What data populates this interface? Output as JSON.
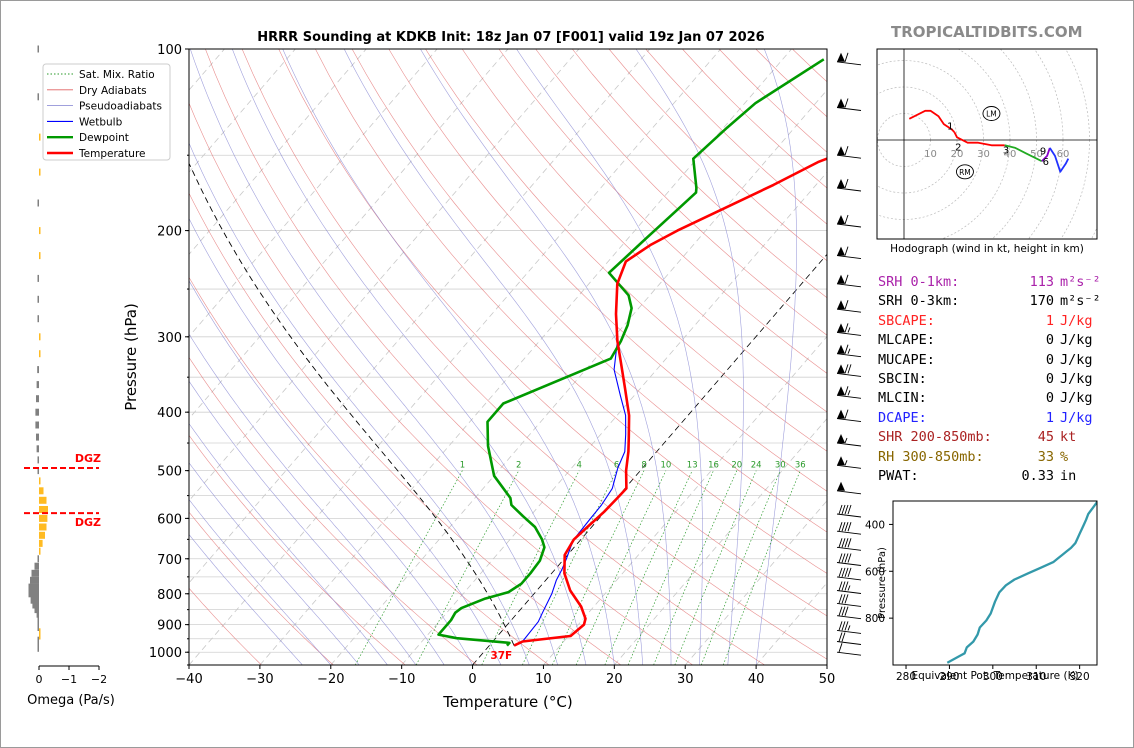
{
  "brand": "TROPICALTIDBITS.COM",
  "colors": {
    "temperature": "#ff0000",
    "dewpoint": "#009900",
    "wetbulb": "#0000ff",
    "dry_adiabat": "#e06060",
    "pseudoadiabat": "#8080d0",
    "mixing_ratio": "#2a9a2a",
    "theta_e": "#3399aa",
    "omega_up": "#ffbb22",
    "omega_down": "#808080",
    "dgz": "#ff0000",
    "srh1": "#aa22aa",
    "parcel_red": "#ff2222",
    "dcape": "#2222ff",
    "shear": "#aa2222",
    "rh": "#886600"
  },
  "chart_data": [
    {
      "type": "line",
      "title": "HRRR Sounding at KDKB Init: 18z Jan 07 [F001] valid 19z Jan 07 2026",
      "xlabel": "Temperature (°C)",
      "ylabel": "Pressure (hPa)",
      "xlim": [
        -40,
        50
      ],
      "ylim": [
        1050,
        100
      ],
      "y_scale": "log",
      "x_ticks": [
        "−40",
        "−30",
        "−20",
        "−10",
        "0",
        "10",
        "20",
        "30",
        "40",
        "50"
      ],
      "y_ticks": [
        "100",
        "200",
        "300",
        "400",
        "500",
        "600",
        "700",
        "800",
        "900",
        "1000"
      ],
      "grid": true,
      "legend_position": "top-left",
      "legend": [
        "Sat. Mix. Ratio",
        "Dry Adiabats",
        "Pseudoadiabats",
        "Wetbulb",
        "Dewpoint",
        "Temperature"
      ],
      "surface_label": "37F",
      "mixing_ratio_labels": [
        "1",
        "2",
        "4",
        "6",
        "8",
        "10",
        "13",
        "16",
        "20",
        "24",
        "30",
        "36"
      ],
      "series": [
        {
          "name": "Temperature",
          "points": [
            [
              3.5,
              975
            ],
            [
              4.2,
              960
            ],
            [
              10.3,
              940
            ],
            [
              10.8,
              900
            ],
            [
              10.3,
              880
            ],
            [
              8.2,
              840
            ],
            [
              4.7,
              790
            ],
            [
              1.8,
              740
            ],
            [
              -0.4,
              690
            ],
            [
              -1.0,
              650
            ],
            [
              -0.6,
              620
            ],
            [
              -0.1,
              585
            ],
            [
              0.1,
              555
            ],
            [
              0.2,
              535
            ],
            [
              -2.0,
              500
            ],
            [
              -4.0,
              465
            ],
            [
              -5.7,
              440
            ],
            [
              -8.3,
              405
            ],
            [
              -12.2,
              365
            ],
            [
              -16.0,
              330
            ],
            [
              -19.0,
              305
            ],
            [
              -22.5,
              275
            ],
            [
              -26.0,
              245
            ],
            [
              -27.5,
              225
            ],
            [
              -26.0,
              211
            ],
            [
              -24.0,
              200
            ],
            [
              -16.0,
              168
            ],
            [
              -12.5,
              154
            ],
            [
              -6.0,
              139
            ],
            [
              -2.7,
              128
            ],
            [
              -0.3,
              119
            ],
            [
              1.5,
              112
            ],
            [
              4.5,
              101
            ]
          ]
        },
        {
          "name": "Dewpoint",
          "points": [
            [
              2.5,
              975
            ],
            [
              2.5,
              965
            ],
            [
              -5.5,
              948
            ],
            [
              -8.5,
              935
            ],
            [
              -8.5,
              885
            ],
            [
              -8.8,
              860
            ],
            [
              -8.5,
              845
            ],
            [
              -6.3,
              815
            ],
            [
              -3.8,
              795
            ],
            [
              -3.0,
              770
            ],
            [
              -3.0,
              740
            ],
            [
              -3.2,
              705
            ],
            [
              -4.2,
              670
            ],
            [
              -5.5,
              650
            ],
            [
              -8.0,
              620
            ],
            [
              -11.0,
              595
            ],
            [
              -14.0,
              570
            ],
            [
              -15.0,
              555
            ],
            [
              -20.0,
              510
            ],
            [
              -24.5,
              455
            ],
            [
              -27.5,
              415
            ],
            [
              -27.5,
              387
            ],
            [
              -21.0,
              345
            ],
            [
              -17.8,
              326
            ],
            [
              -18.5,
              305
            ],
            [
              -19.5,
              287
            ],
            [
              -21.0,
              269
            ],
            [
              -23.0,
              256
            ],
            [
              -28.5,
              235
            ],
            [
              -27.5,
              207
            ],
            [
              -26.5,
              184
            ],
            [
              -26.0,
              173
            ],
            [
              -26.5,
              170
            ],
            [
              -30.5,
              152
            ],
            [
              -29.5,
              135
            ],
            [
              -28.5,
              123
            ],
            [
              -24.2,
              104
            ]
          ]
        },
        {
          "name": "Wetbulb",
          "points": [
            [
              3.5,
              975
            ],
            [
              4.2,
              965
            ],
            [
              4.0,
              890
            ],
            [
              3.5,
              860
            ],
            [
              2.5,
              800
            ],
            [
              1.5,
              760
            ],
            [
              1.0,
              730
            ],
            [
              0.3,
              700
            ],
            [
              -0.5,
              670
            ],
            [
              -1.0,
              650
            ],
            [
              -1.2,
              600
            ],
            [
              -1.3,
              570
            ],
            [
              -1.8,
              535
            ],
            [
              -3.5,
              495
            ],
            [
              -4.5,
              465
            ],
            [
              -6.5,
              435
            ],
            [
              -8.8,
              405
            ],
            [
              -12.0,
              375
            ],
            [
              -16.0,
              340
            ],
            [
              -19.0,
              305
            ],
            [
              -22.5,
              275
            ],
            [
              -26.0,
              245
            ],
            [
              -27.5,
              225
            ],
            [
              -26.0,
              211
            ],
            [
              -24.0,
              200
            ],
            [
              -16.0,
              168
            ],
            [
              -12.5,
              154
            ],
            [
              -6.0,
              139
            ],
            [
              -3.0,
              128
            ],
            [
              -1.5,
              119
            ],
            [
              0.5,
              112
            ],
            [
              4.0,
              101
            ]
          ]
        }
      ]
    },
    {
      "type": "line",
      "title": "Hodograph (wind in kt, height in km)",
      "ring_labels": [
        "10",
        "20",
        "30",
        "40",
        "50",
        "60"
      ],
      "annotations": [
        "LM",
        "RM"
      ],
      "height_labels": [
        "1",
        "2",
        "3",
        "9",
        "6"
      ],
      "series": [
        {
          "name": "0-1 km",
          "points": [
            [
              2,
              8
            ],
            [
              8,
              11
            ],
            [
              10,
              11
            ],
            [
              13,
              9
            ],
            [
              15,
              6
            ],
            [
              18,
              4
            ],
            [
              19,
              3
            ]
          ]
        },
        {
          "name": "1-3 km",
          "points": [
            [
              19,
              3
            ],
            [
              20,
              1
            ],
            [
              24,
              -1
            ],
            [
              28,
              -1
            ],
            [
              33,
              -2
            ],
            [
              38,
              -2
            ]
          ]
        },
        {
          "name": "3-6 km",
          "points": [
            [
              38,
              -2
            ],
            [
              42,
              -3
            ],
            [
              46,
              -5
            ],
            [
              52,
              -8
            ]
          ]
        },
        {
          "name": "6-9 km",
          "points": [
            [
              52,
              -8
            ],
            [
              54,
              -6
            ],
            [
              55,
              -3
            ]
          ]
        },
        {
          "name": "9+ km",
          "points": [
            [
              55,
              -3
            ],
            [
              57,
              -6
            ],
            [
              59,
              -12
            ],
            [
              61,
              -9
            ],
            [
              62,
              -7
            ]
          ]
        }
      ],
      "lm": [
        33,
        10
      ],
      "rm": [
        23,
        -12
      ]
    },
    {
      "type": "line",
      "xlabel": "Equivalent Pot. Temperature (K)",
      "ylabel": "Pressure (hPa)",
      "xlim": [
        277,
        324
      ],
      "ylim": [
        1000,
        300
      ],
      "x_ticks": [
        "280",
        "290",
        "300",
        "310",
        "320"
      ],
      "y_ticks": [
        "400",
        "600",
        "800"
      ],
      "series": [
        {
          "name": "Theta-e",
          "points": [
            [
              289.5,
              990
            ],
            [
              292.5,
              960
            ],
            [
              293.5,
              950
            ],
            [
              294,
              925
            ],
            [
              295.5,
              900
            ],
            [
              296.5,
              870
            ],
            [
              297,
              840
            ],
            [
              298.5,
              810
            ],
            [
              299.5,
              780
            ],
            [
              300.5,
              730
            ],
            [
              301.5,
              690
            ],
            [
              303,
              660
            ],
            [
              305,
              635
            ],
            [
              308,
              610
            ],
            [
              311,
              585
            ],
            [
              314,
              560
            ],
            [
              315,
              545
            ],
            [
              316,
              530
            ],
            [
              317,
              515
            ],
            [
              318,
              500
            ],
            [
              319,
              480
            ],
            [
              319.5,
              460
            ],
            [
              320,
              440
            ],
            [
              320.5,
              420
            ],
            [
              321,
              400
            ],
            [
              321.5,
              380
            ],
            [
              322,
              355
            ],
            [
              323,
              330
            ],
            [
              324,
              305
            ],
            [
              325,
              300
            ]
          ]
        }
      ]
    },
    {
      "type": "bar",
      "xlabel": "Omega (Pa/s)",
      "x_ticks": [
        "0",
        "−1",
        "−2"
      ],
      "annotations": [
        "DGZ",
        "DGZ"
      ],
      "dgz_bounds_hpa": [
        495,
        588
      ],
      "levels_hpa": [
        985,
        970,
        955,
        940,
        925,
        910,
        895,
        880,
        865,
        850,
        835,
        820,
        800,
        780,
        760,
        740,
        720,
        700,
        680,
        660,
        640,
        620,
        600,
        580,
        560,
        540,
        520,
        500,
        480,
        460,
        440,
        420,
        400,
        380,
        360,
        340,
        320,
        300,
        280,
        260,
        240,
        220,
        200,
        180,
        160,
        140,
        120,
        100
      ],
      "values": [
        -0.05,
        -0.03,
        -0.02,
        0.02,
        0.0,
        -0.03,
        -0.05,
        -0.05,
        -0.08,
        -0.15,
        -0.22,
        -0.28,
        -0.35,
        -0.35,
        -0.3,
        -0.25,
        -0.15,
        -0.05,
        0.05,
        0.12,
        0.2,
        0.25,
        0.28,
        0.3,
        0.25,
        0.15,
        0.05,
        -0.05,
        -0.05,
        -0.08,
        -0.1,
        -0.12,
        -0.12,
        -0.1,
        -0.08,
        -0.06,
        0.04,
        0.04,
        -0.03,
        -0.03,
        -0.02,
        0.05,
        0.02,
        -0.03,
        0.05,
        0.02,
        -0.03,
        -0.02
      ]
    }
  ],
  "legend": {
    "items": [
      {
        "label": "Sat. Mix. Ratio",
        "style": "mixing"
      },
      {
        "label": "Dry Adiabats",
        "style": "dry"
      },
      {
        "label": "Pseudoadiabats",
        "style": "pseudo"
      },
      {
        "label": "Wetbulb",
        "style": "wetbulb"
      },
      {
        "label": "Dewpoint",
        "style": "dewpoint"
      },
      {
        "label": "Temperature",
        "style": "temperature"
      }
    ]
  },
  "params": [
    {
      "label": "SRH 0-1km:",
      "value": "113",
      "unit": "m²s⁻²",
      "color": "#aa22aa"
    },
    {
      "label": "SRH 0-3km:",
      "value": "170",
      "unit": "m²s⁻²",
      "color": "#000000"
    },
    {
      "label": "SBCAPE:",
      "value": "1",
      "unit": "J/kg",
      "color": "#ff2222"
    },
    {
      "label": "MLCAPE:",
      "value": "0",
      "unit": "J/kg",
      "color": "#000000"
    },
    {
      "label": "MUCAPE:",
      "value": "0",
      "unit": "J/kg",
      "color": "#000000"
    },
    {
      "label": "SBCIN:",
      "value": "0",
      "unit": "J/kg",
      "color": "#000000"
    },
    {
      "label": "MLCIN:",
      "value": "0",
      "unit": "J/kg",
      "color": "#000000"
    },
    {
      "label": "DCAPE:",
      "value": "1",
      "unit": "J/kg",
      "color": "#2222ff"
    },
    {
      "label": "SHR 200-850mb:",
      "value": "45",
      "unit": "kt",
      "color": "#aa2222"
    },
    {
      "label": "RH 300-850mb:",
      "value": "33",
      "unit": "%",
      "color": "#886600"
    },
    {
      "label": "PWAT:",
      "value": "0.33",
      "unit": "in",
      "color": "#000000"
    }
  ],
  "wind_barbs": [
    {
      "p": 1000,
      "dir": 265,
      "kt": 10
    },
    {
      "p": 960,
      "dir": 240,
      "kt": 20
    },
    {
      "p": 920,
      "dir": 250,
      "kt": 35
    },
    {
      "p": 870,
      "dir": 260,
      "kt": 30
    },
    {
      "p": 830,
      "dir": 270,
      "kt": 30
    },
    {
      "p": 790,
      "dir": 270,
      "kt": 35
    },
    {
      "p": 750,
      "dir": 270,
      "kt": 40
    },
    {
      "p": 710,
      "dir": 275,
      "kt": 40
    },
    {
      "p": 670,
      "dir": 275,
      "kt": 40
    },
    {
      "p": 630,
      "dir": 275,
      "kt": 40
    },
    {
      "p": 590,
      "dir": 275,
      "kt": 40
    },
    {
      "p": 540,
      "dir": 275,
      "kt": 50
    },
    {
      "p": 490,
      "dir": 275,
      "kt": 55
    },
    {
      "p": 450,
      "dir": 275,
      "kt": 55
    },
    {
      "p": 410,
      "dir": 275,
      "kt": 60
    },
    {
      "p": 375,
      "dir": 275,
      "kt": 65
    },
    {
      "p": 345,
      "dir": 275,
      "kt": 70
    },
    {
      "p": 320,
      "dir": 275,
      "kt": 65
    },
    {
      "p": 295,
      "dir": 275,
      "kt": 65
    },
    {
      "p": 270,
      "dir": 275,
      "kt": 60
    },
    {
      "p": 245,
      "dir": 275,
      "kt": 60
    },
    {
      "p": 220,
      "dir": 275,
      "kt": 60
    },
    {
      "p": 195,
      "dir": 275,
      "kt": 60
    },
    {
      "p": 170,
      "dir": 275,
      "kt": 60
    },
    {
      "p": 150,
      "dir": 275,
      "kt": 60
    },
    {
      "p": 125,
      "dir": 275,
      "kt": 60
    },
    {
      "p": 105,
      "dir": 275,
      "kt": 60
    }
  ]
}
